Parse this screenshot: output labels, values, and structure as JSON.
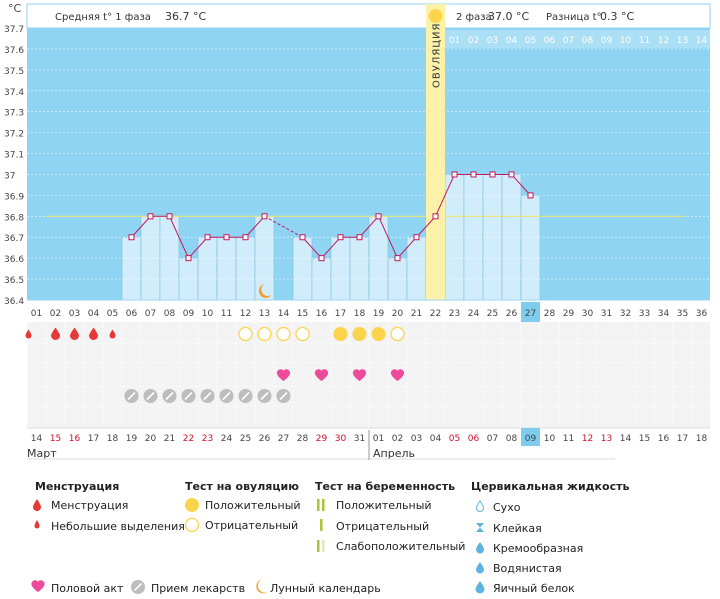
{
  "header": {
    "unit": "°C",
    "phase1_label": "Средняя t° 1 фаза",
    "phase1_value": "36.7 °C",
    "phase2_label": "2 фаза",
    "phase2_value": "37.0 °C",
    "diff_label": "Разница t°",
    "diff_value": "0.3 °C"
  },
  "ovulation_label": "ОВУЛЯЦИЯ",
  "post_ovulation_days": [
    "01",
    "02",
    "03",
    "04",
    "05",
    "06",
    "07",
    "08",
    "09",
    "10",
    "11",
    "12",
    "13",
    "14"
  ],
  "colors": {
    "sky": "#8fd4f3",
    "grid_blue": "#b5e2f7",
    "cycle_fill": "#d1ecfb",
    "cycle_stroke": "#7fbde2",
    "line": "#c2185b",
    "coverline": "#e8e27a",
    "ovulation": "#fbf1a9",
    "sun": "#fbd44c",
    "drop": "#e53935",
    "heart": "#ec4a9a",
    "pill": "#bdbdbd",
    "moon": "#f0a030",
    "highlight_day": "#7fcdee",
    "weekend": "#d0102c"
  },
  "chart_data": {
    "type": "line",
    "ylabel": "°C",
    "ylim": [
      36.4,
      37.7
    ],
    "yticks": [
      "37.7",
      "37.6",
      "37.5",
      "37.4",
      "37.3",
      "37.2",
      "37.1",
      "37",
      "36.9",
      "36.8",
      "36.7",
      "36.6",
      "36.5",
      "36.4"
    ],
    "coverline": 36.8,
    "cycle_days": [
      "01",
      "02",
      "03",
      "04",
      "05",
      "06",
      "07",
      "08",
      "09",
      "10",
      "11",
      "12",
      "13",
      "14",
      "15",
      "16",
      "17",
      "18",
      "19",
      "20",
      "21",
      "22",
      "23",
      "24",
      "25",
      "26",
      "27",
      "28",
      "29",
      "30",
      "31",
      "32",
      "33",
      "34",
      "35",
      "36"
    ],
    "today_day": 27,
    "ovulation_day": 22,
    "series": [
      {
        "x": [
          6,
          7,
          8,
          9,
          10,
          11,
          12,
          13,
          15,
          16,
          17,
          18,
          19,
          20,
          21,
          22,
          23,
          24,
          25,
          26,
          27
        ],
        "y": [
          36.7,
          36.8,
          36.8,
          36.6,
          36.7,
          36.7,
          36.7,
          36.8,
          36.7,
          36.6,
          36.7,
          36.7,
          36.8,
          36.6,
          36.7,
          36.8,
          37.0,
          37.0,
          37.0,
          37.0,
          36.9
        ]
      }
    ],
    "interpolated_segment": [
      13,
      15
    ],
    "events": {
      "menstruation": [
        1,
        2,
        3,
        4,
        5
      ],
      "menstruation_small": [
        1,
        5
      ],
      "ovulation_positive": [
        17,
        18,
        19
      ],
      "ovulation_negative": [
        12,
        13,
        14,
        15,
        20
      ],
      "intercourse": [
        14,
        16,
        18,
        20
      ],
      "medication": [
        6,
        7,
        8,
        9,
        10,
        11,
        12,
        13,
        14
      ],
      "moon": [
        13
      ]
    },
    "dates": {
      "days": [
        "14",
        "15",
        "16",
        "17",
        "18",
        "19",
        "20",
        "21",
        "22",
        "23",
        "24",
        "25",
        "26",
        "27",
        "28",
        "29",
        "30",
        "31",
        "01",
        "02",
        "03",
        "04",
        "05",
        "06",
        "07",
        "08",
        "09",
        "10",
        "11",
        "12",
        "13",
        "14",
        "15",
        "16",
        "17",
        "18"
      ],
      "weekend_idx": [
        1,
        2,
        8,
        9,
        15,
        16,
        22,
        23,
        29,
        30
      ],
      "today_idx": 26,
      "month1": "Март",
      "month2": "Апрель",
      "month2_start_idx": 18
    }
  },
  "legend": {
    "menstruation": {
      "title": "Менструация",
      "items": [
        {
          "icon": "drop-large",
          "label": "Менструация"
        },
        {
          "icon": "drop-small",
          "label": "Небольшие выделения"
        }
      ]
    },
    "ovulation_test": {
      "title": "Тест на овуляцию",
      "items": [
        {
          "icon": "sun-filled",
          "label": "Положительный"
        },
        {
          "icon": "sun-outline",
          "label": "Отрицательный"
        }
      ]
    },
    "pregnancy_test": {
      "title": "Тест на беременность",
      "items": [
        {
          "icon": "two-bars",
          "label": "Положительный"
        },
        {
          "icon": "one-bar",
          "label": "Отрицательный"
        },
        {
          "icon": "faint-bars",
          "label": "Слабоположительный"
        }
      ]
    },
    "cervical": {
      "title": "Цервикальная жидкость",
      "items": [
        {
          "icon": "dry",
          "label": "Сухо"
        },
        {
          "icon": "sticky",
          "label": "Клейкая"
        },
        {
          "icon": "creamy",
          "label": "Кремообразная"
        },
        {
          "icon": "watery",
          "label": "Водянистая"
        },
        {
          "icon": "eggwhite",
          "label": "Яичный белок"
        }
      ]
    },
    "bottom": [
      {
        "icon": "heart",
        "label": "Половой акт"
      },
      {
        "icon": "pill",
        "label": "Прием лекарств"
      },
      {
        "icon": "moon",
        "label": "Лунный календарь"
      }
    ]
  }
}
